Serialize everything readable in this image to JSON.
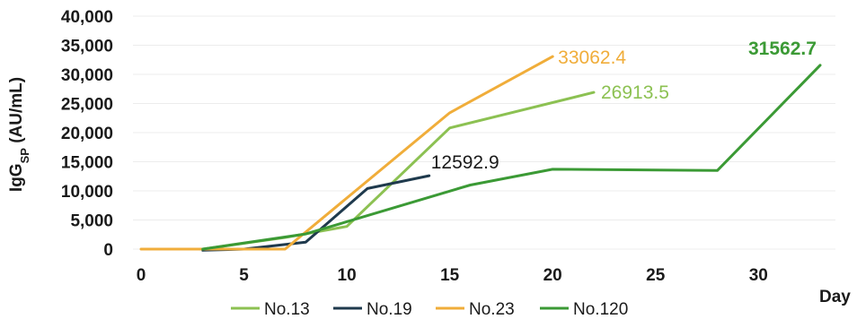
{
  "chart_data": {
    "type": "line",
    "xlabel": "Day",
    "ylabel": "IgG",
    "ylabel_sub": "SP",
    "ylabel_unit": " (AU/mL)",
    "xlim": [
      0,
      33
    ],
    "ylim": [
      0,
      40000
    ],
    "x_ticks": [
      0,
      5,
      10,
      15,
      20,
      25,
      30
    ],
    "x_tick_labels": [
      "0",
      "5",
      "10",
      "15",
      "20",
      "25",
      "30"
    ],
    "y_ticks": [
      0,
      5000,
      10000,
      15000,
      20000,
      25000,
      30000,
      35000,
      40000
    ],
    "y_tick_labels": [
      "0",
      "5,000",
      "10,000",
      "15,000",
      "20,000",
      "25,000",
      "30,000",
      "35,000",
      "40,000"
    ],
    "grid": true,
    "legend_position": "bottom",
    "series": [
      {
        "name": "No.13",
        "color": "#8cc152",
        "points": [
          [
            3,
            0
          ],
          [
            7,
            2000
          ],
          [
            10,
            3900
          ],
          [
            15,
            20800
          ],
          [
            22,
            26913.5
          ]
        ],
        "end_label": "26913.5",
        "end_label_color": "#8cc152",
        "end_label_bold": false
      },
      {
        "name": "No.19",
        "color": "#1f3a4d",
        "points": [
          [
            3,
            -200
          ],
          [
            5,
            0
          ],
          [
            8,
            1200
          ],
          [
            11,
            10400
          ],
          [
            14,
            12592.9
          ]
        ],
        "end_label": "12592.9",
        "end_label_color": "#1a1a1a",
        "end_label_bold": false
      },
      {
        "name": "No.23",
        "color": "#f0ad3a",
        "points": [
          [
            0,
            0
          ],
          [
            7,
            0
          ],
          [
            15,
            23400
          ],
          [
            20,
            33062.4
          ]
        ],
        "end_label": "33062.4",
        "end_label_color": "#f0ad3a",
        "end_label_bold": false
      },
      {
        "name": "No.120",
        "color": "#3b9a35",
        "points": [
          [
            3,
            0
          ],
          [
            8,
            2600
          ],
          [
            16,
            11000
          ],
          [
            20,
            13700
          ],
          [
            28,
            13500
          ],
          [
            33,
            31562.7
          ]
        ],
        "end_label": "31562.7",
        "end_label_color": "#3b9a35",
        "end_label_bold": true
      }
    ]
  }
}
